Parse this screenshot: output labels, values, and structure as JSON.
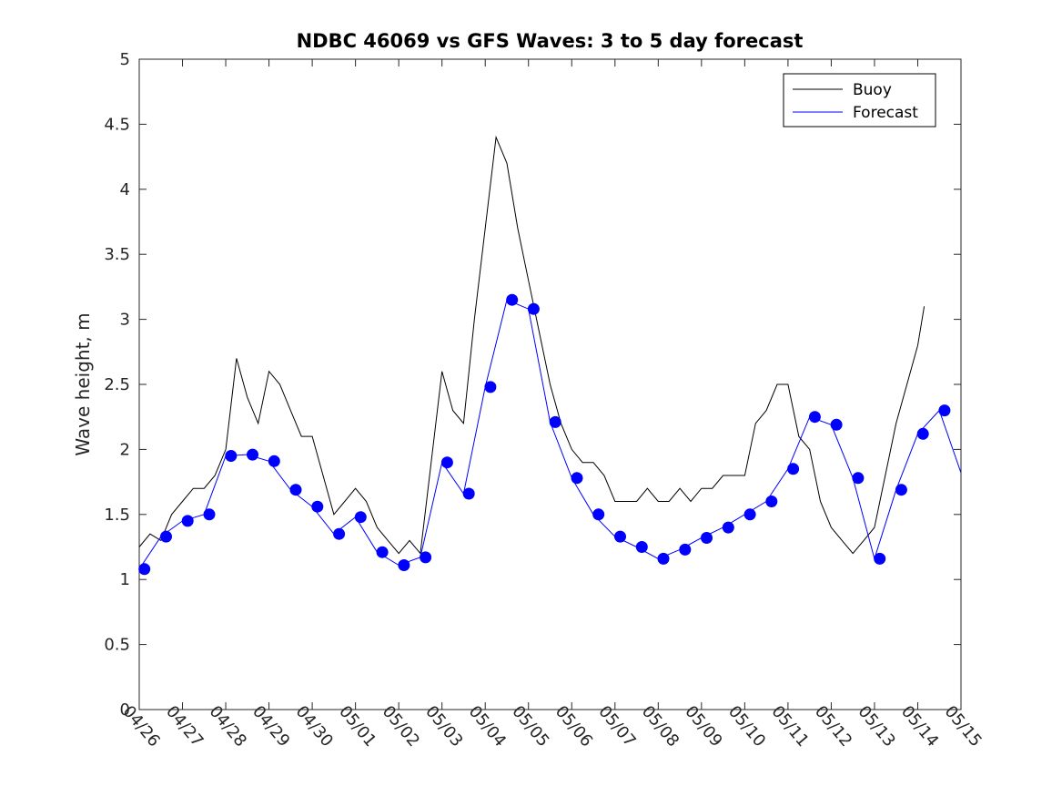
{
  "chart_data": {
    "type": "line",
    "title": "NDBC 46069 vs GFS Waves: 3 to 5 day forecast",
    "xlabel": "",
    "ylabel": "Wave height, m",
    "xlim": [
      "04/26",
      "05/15"
    ],
    "ylim": [
      0,
      5
    ],
    "yticks": [
      "0",
      "0.5",
      "1",
      "1.5",
      "2",
      "2.5",
      "3",
      "3.5",
      "4",
      "4.5",
      "5"
    ],
    "xticks": [
      "04/26",
      "04/27",
      "04/28",
      "04/29",
      "04/30",
      "05/01",
      "05/02",
      "05/03",
      "05/04",
      "05/05",
      "05/06",
      "05/07",
      "05/08",
      "05/09",
      "05/10",
      "05/11",
      "05/12",
      "05/13",
      "05/14",
      "05/15"
    ],
    "grid": false,
    "legend": {
      "placement": "top-right",
      "entries": [
        "Buoy",
        "Forecast"
      ]
    },
    "colors": {
      "buoy": "#000000",
      "forecast": "#0000ff",
      "markers": "#0000ff"
    },
    "series": [
      {
        "name": "Buoy",
        "x_days_from_0426": [
          0.0,
          0.25,
          0.5,
          0.75,
          1.0,
          1.25,
          1.5,
          1.75,
          2.0,
          2.25,
          2.5,
          2.75,
          3.0,
          3.25,
          3.5,
          3.75,
          4.0,
          4.25,
          4.5,
          4.75,
          5.0,
          5.25,
          5.5,
          5.75,
          6.0,
          6.25,
          6.5,
          6.75,
          7.0,
          7.25,
          7.5,
          7.75,
          8.0,
          8.25,
          8.5,
          8.75,
          9.0,
          9.25,
          9.5,
          9.75,
          10.0,
          10.25,
          10.5,
          10.75,
          11.0,
          11.25,
          11.5,
          11.75,
          12.0,
          12.25,
          12.5,
          12.75,
          13.0,
          13.25,
          13.5,
          13.75,
          14.0,
          14.25,
          14.5,
          14.75,
          15.0,
          15.25,
          15.5,
          15.75,
          16.0,
          16.25,
          16.5,
          16.75,
          17.0,
          17.25,
          17.5,
          17.75,
          18.0,
          18.15
        ],
        "values": [
          1.25,
          1.35,
          1.3,
          1.5,
          1.6,
          1.7,
          1.7,
          1.8,
          2.0,
          2.7,
          2.4,
          2.2,
          2.6,
          2.5,
          2.3,
          2.1,
          2.1,
          1.8,
          1.5,
          1.6,
          1.7,
          1.6,
          1.4,
          1.3,
          1.2,
          1.3,
          1.2,
          1.9,
          2.6,
          2.3,
          2.2,
          3.0,
          3.7,
          4.4,
          4.2,
          3.7,
          3.3,
          2.9,
          2.5,
          2.2,
          2.0,
          1.9,
          1.9,
          1.8,
          1.6,
          1.6,
          1.6,
          1.7,
          1.6,
          1.6,
          1.7,
          1.6,
          1.7,
          1.7,
          1.8,
          1.8,
          1.8,
          2.2,
          2.3,
          2.5,
          2.5,
          2.1,
          2.0,
          1.6,
          1.4,
          1.3,
          1.2,
          1.3,
          1.4,
          1.8,
          2.2,
          2.5,
          2.8,
          3.1
        ]
      },
      {
        "name": "Forecast",
        "x_days_from_0426": [
          0.0,
          0.5,
          1.0,
          1.5,
          2.0,
          2.5,
          3.0,
          3.5,
          4.0,
          4.5,
          5.0,
          5.5,
          6.0,
          6.5,
          7.0,
          7.5,
          8.0,
          8.5,
          9.0,
          9.5,
          10.0,
          10.5,
          11.0,
          11.5,
          12.0,
          12.5,
          13.0,
          13.5,
          14.0,
          14.5,
          15.0,
          15.5,
          16.0,
          16.5,
          17.0,
          17.5,
          18.0,
          18.5,
          19.0
        ],
        "values": [
          1.08,
          1.33,
          1.45,
          1.5,
          1.95,
          1.96,
          1.91,
          1.69,
          1.56,
          1.35,
          1.48,
          1.21,
          1.11,
          1.17,
          1.9,
          1.66,
          2.48,
          3.15,
          3.08,
          2.21,
          1.78,
          1.5,
          1.33,
          1.25,
          1.16,
          1.23,
          1.32,
          1.4,
          1.5,
          1.6,
          1.85,
          2.25,
          2.19,
          1.78,
          1.16,
          1.69,
          2.12,
          2.3,
          1.82
        ]
      }
    ],
    "markers": {
      "name": "Forecast",
      "x_days_from_0426": [
        0.12,
        0.62,
        1.12,
        1.62,
        2.12,
        2.62,
        3.12,
        3.62,
        4.12,
        4.62,
        5.12,
        5.62,
        6.12,
        6.62,
        7.12,
        7.62,
        8.12,
        8.62,
        9.12,
        9.62,
        10.12,
        10.62,
        11.12,
        11.62,
        12.12,
        12.62,
        13.12,
        13.62,
        14.12,
        14.62,
        15.12,
        15.62,
        16.12,
        16.62,
        17.12,
        17.62,
        18.12,
        18.62
      ],
      "values": [
        1.08,
        1.33,
        1.45,
        1.5,
        1.95,
        1.96,
        1.91,
        1.69,
        1.56,
        1.35,
        1.48,
        1.21,
        1.11,
        1.17,
        1.9,
        1.66,
        2.48,
        3.15,
        3.08,
        2.21,
        1.78,
        1.5,
        1.33,
        1.25,
        1.16,
        1.23,
        1.32,
        1.4,
        1.5,
        1.6,
        1.85,
        2.25,
        2.19,
        1.78,
        1.16,
        1.69,
        2.12,
        2.3
      ]
    }
  }
}
